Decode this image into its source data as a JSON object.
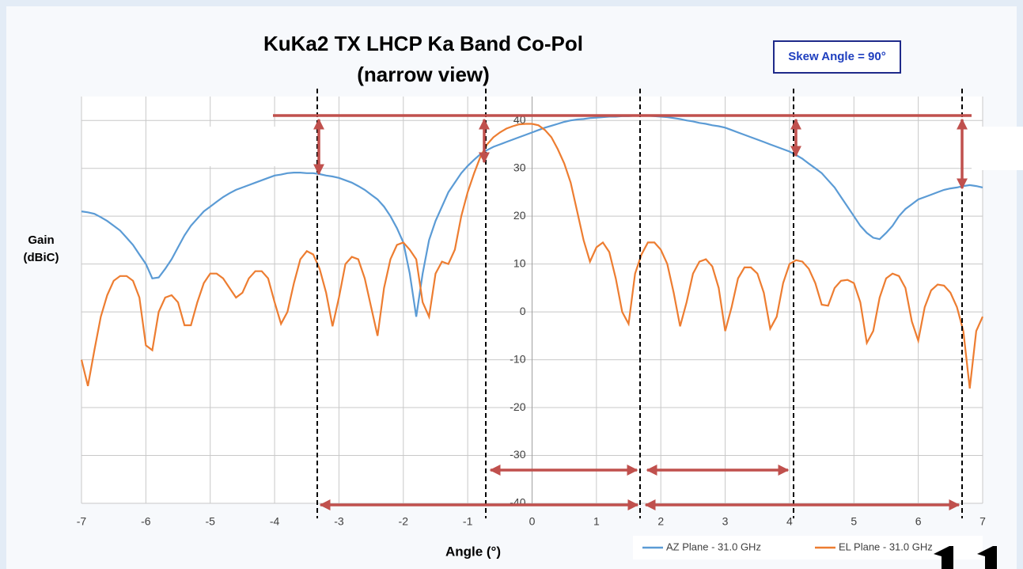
{
  "chart_data": {
    "type": "line",
    "title": "KuKa2 TX LHCP Ka Band Co-Pol",
    "subtitle": "(narrow view)",
    "annotation": "Skew Angle = 90°",
    "x_label": "Angle (°)",
    "y_label": [
      "Gain",
      "(dBiC)"
    ],
    "xlim": [
      -7,
      7
    ],
    "xticks": [
      -7,
      -6,
      -5,
      -4,
      -3,
      -2,
      -1,
      0,
      1,
      2,
      3,
      4,
      5,
      6,
      7
    ],
    "ylim": [
      -40,
      45
    ],
    "yticks": [
      -40,
      -30,
      -20,
      -10,
      0,
      10,
      20,
      30,
      40
    ],
    "grid": true,
    "legend": "bottom-right",
    "x": [
      -7,
      -6.9,
      -6.8,
      -6.7,
      -6.6,
      -6.5,
      -6.4,
      -6.3,
      -6.2,
      -6.1,
      -6,
      -5.9,
      -5.8,
      -5.7,
      -5.6,
      -5.5,
      -5.4,
      -5.3,
      -5.2,
      -5.1,
      -5,
      -4.9,
      -4.8,
      -4.7,
      -4.6,
      -4.5,
      -4.4,
      -4.3,
      -4.2,
      -4.1,
      -4,
      -3.9,
      -3.8,
      -3.7,
      -3.6,
      -3.5,
      -3.4,
      -3.3,
      -3.2,
      -3.1,
      -3,
      -2.9,
      -2.8,
      -2.7,
      -2.6,
      -2.5,
      -2.4,
      -2.3,
      -2.2,
      -2.1,
      -2,
      -1.9,
      -1.8,
      -1.7,
      -1.6,
      -1.5,
      -1.4,
      -1.3,
      -1.2,
      -1.1,
      -1,
      -0.9,
      -0.8,
      -0.7,
      -0.6,
      -0.5,
      -0.4,
      -0.3,
      -0.2,
      -0.1,
      0,
      0.1,
      0.2,
      0.3,
      0.4,
      0.5,
      0.6,
      0.7,
      0.8,
      0.9,
      1,
      1.1,
      1.2,
      1.3,
      1.4,
      1.5,
      1.6,
      1.7,
      1.8,
      1.9,
      2,
      2.1,
      2.2,
      2.3,
      2.4,
      2.5,
      2.6,
      2.7,
      2.8,
      2.9,
      3,
      3.1,
      3.2,
      3.3,
      3.4,
      3.5,
      3.6,
      3.7,
      3.8,
      3.9,
      4,
      4.1,
      4.2,
      4.3,
      4.4,
      4.5,
      4.6,
      4.7,
      4.8,
      4.9,
      5,
      5.1,
      5.2,
      5.3,
      5.4,
      5.5,
      5.6,
      5.7,
      5.8,
      5.9,
      6,
      6.1,
      6.2,
      6.3,
      6.4,
      6.5,
      6.6,
      6.7,
      6.8,
      6.9,
      7
    ],
    "series": [
      {
        "name": "AZ Plane - 31.0 GHz",
        "color": "#5b9bd5",
        "values": [
          21,
          20.8,
          20.5,
          19.8,
          19,
          18,
          17,
          15.5,
          14,
          12,
          10,
          7,
          7.2,
          9,
          11,
          13.5,
          16,
          18,
          19.5,
          21,
          22,
          23,
          24,
          24.8,
          25.5,
          26,
          26.5,
          27,
          27.5,
          28,
          28.5,
          28.7,
          29,
          29.1,
          29.1,
          29,
          29,
          28.8,
          28.5,
          28.3,
          28,
          27.5,
          27,
          26.3,
          25.5,
          24.5,
          23.5,
          22,
          20,
          17.5,
          14.5,
          8,
          -1,
          8,
          15,
          19,
          22,
          25,
          27,
          29,
          30.5,
          31.8,
          33,
          33.8,
          34.5,
          35,
          35.5,
          36,
          36.5,
          37,
          37.5,
          38,
          38.5,
          38.9,
          39.3,
          39.7,
          40,
          40.2,
          40.3,
          40.5,
          40.6,
          40.7,
          40.8,
          40.8,
          40.9,
          40.9,
          41,
          41,
          41,
          40.9,
          40.8,
          40.7,
          40.5,
          40.3,
          40,
          39.8,
          39.5,
          39.3,
          39,
          38.8,
          38.5,
          38,
          37.5,
          37,
          36.5,
          36,
          35.5,
          35,
          34.5,
          34,
          33.5,
          32.8,
          32,
          31,
          30,
          29,
          27.5,
          26,
          24,
          22,
          20,
          18,
          16.5,
          15.5,
          15.2,
          16.5,
          18,
          20,
          21.5,
          22.5,
          23.5,
          24,
          24.5,
          25,
          25.5,
          25.8,
          26,
          26.3,
          26.5,
          26.3,
          26
        ]
      },
      {
        "name": "EL Plane - 31.0 GHz",
        "color": "#ed7d31",
        "values": [
          -10,
          -15.5,
          -8,
          -1,
          3.5,
          6.5,
          7.5,
          7.5,
          6.5,
          3,
          -7,
          -8,
          0,
          3,
          3.5,
          2,
          -2.8,
          -2.8,
          2,
          6,
          8,
          8,
          7,
          5,
          3,
          4,
          7,
          8.5,
          8.5,
          7,
          2,
          -2.5,
          0,
          6,
          11,
          12.7,
          12,
          9,
          4,
          -3,
          3,
          10,
          11.5,
          11,
          7,
          1,
          -5,
          5,
          11,
          14,
          14.5,
          13,
          11,
          2,
          -1,
          8,
          10.5,
          10,
          13,
          20,
          25,
          29,
          32.5,
          35,
          36.5,
          37.5,
          38.3,
          38.8,
          39.2,
          39.3,
          39.3,
          39,
          38,
          36.5,
          34,
          31,
          27,
          21,
          15,
          10.5,
          13.5,
          14.5,
          12.5,
          7,
          0,
          -2.5,
          8,
          12,
          14.5,
          14.5,
          13,
          10,
          4,
          -3,
          2,
          8,
          10.5,
          11,
          9.5,
          5,
          -4,
          1,
          7,
          9.3,
          9.3,
          8,
          4,
          -3.5,
          -1,
          6,
          10,
          10.8,
          10.5,
          9,
          6,
          1.5,
          1.3,
          5,
          6.5,
          6.7,
          6,
          2,
          -6.5,
          -4,
          3,
          7,
          8,
          7.5,
          5,
          -2,
          -6,
          1,
          4.5,
          5.7,
          5.5,
          4,
          1,
          -4,
          -16,
          -4,
          -1
        ]
      }
    ]
  }
}
